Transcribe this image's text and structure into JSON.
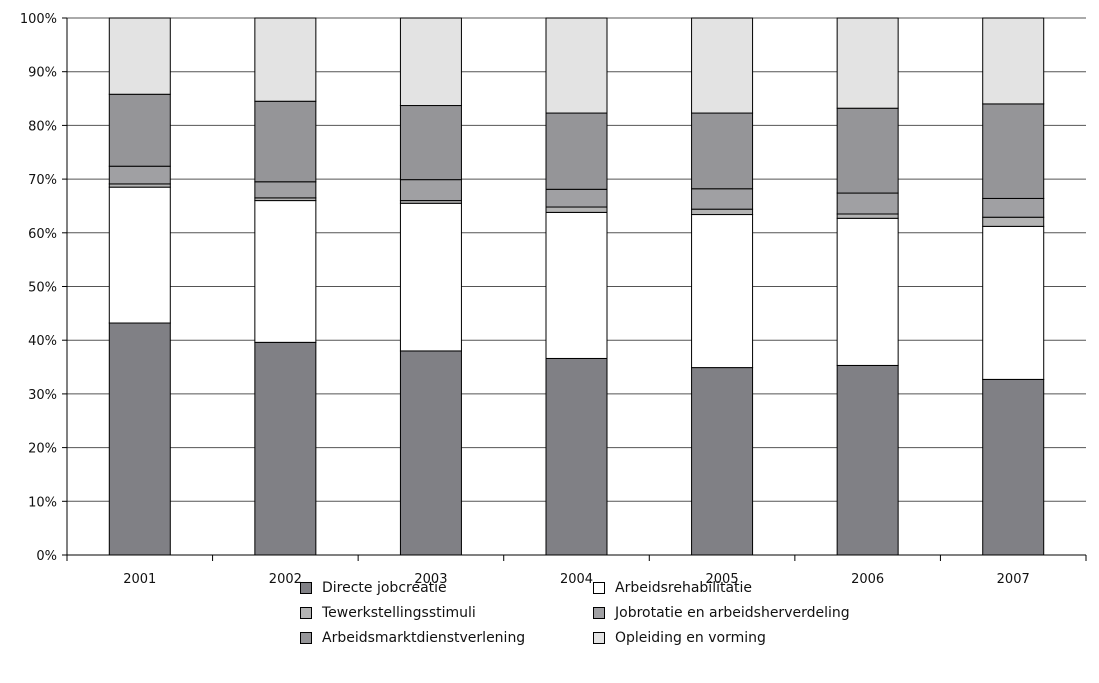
{
  "chart_data": {
    "type": "bar",
    "stacked": true,
    "categories": [
      "2001",
      "2002",
      "2003",
      "2004",
      "2005",
      "2006",
      "2007"
    ],
    "series": [
      {
        "name": "Directe jobcreatie",
        "color": "#808085",
        "values": [
          43.2,
          39.6,
          38.0,
          36.6,
          34.9,
          35.3,
          32.7
        ]
      },
      {
        "name": "Arbeidsrehabilitatie",
        "color": "#ffffff",
        "values": [
          25.3,
          26.4,
          27.5,
          27.2,
          28.5,
          27.4,
          28.5
        ]
      },
      {
        "name": "Tewerkstellingsstimuli",
        "color": "#b4b4b4",
        "values": [
          0.6,
          0.5,
          0.5,
          1.0,
          1.0,
          0.8,
          1.7
        ]
      },
      {
        "name": "Jobrotatie en arbeidsherverdeling",
        "color": "#a0a0a3",
        "values": [
          3.3,
          3.0,
          3.9,
          3.3,
          3.8,
          3.9,
          3.5
        ]
      },
      {
        "name": "Arbeidsmarktdienstverlening",
        "color": "#959598",
        "values": [
          13.4,
          15.0,
          13.8,
          14.2,
          14.1,
          15.8,
          17.6
        ]
      },
      {
        "name": "Opleiding en vorming",
        "color": "#e3e3e3",
        "values": [
          14.2,
          15.5,
          16.3,
          17.7,
          17.7,
          16.8,
          16.0
        ]
      }
    ],
    "y_ticks": [
      "0%",
      "10%",
      "20%",
      "30%",
      "40%",
      "50%",
      "60%",
      "70%",
      "80%",
      "90%",
      "100%"
    ],
    "ylim": [
      0,
      100
    ],
    "grid": true,
    "legend_position": "bottom",
    "legend_order": [
      "Directe jobcreatie",
      "Arbeidsrehabilitatie",
      "Tewerkstellingsstimuli",
      "Jobrotatie en arbeidsherverdeling",
      "Arbeidsmarktdienstverlening",
      "Opleiding en vorming"
    ]
  }
}
